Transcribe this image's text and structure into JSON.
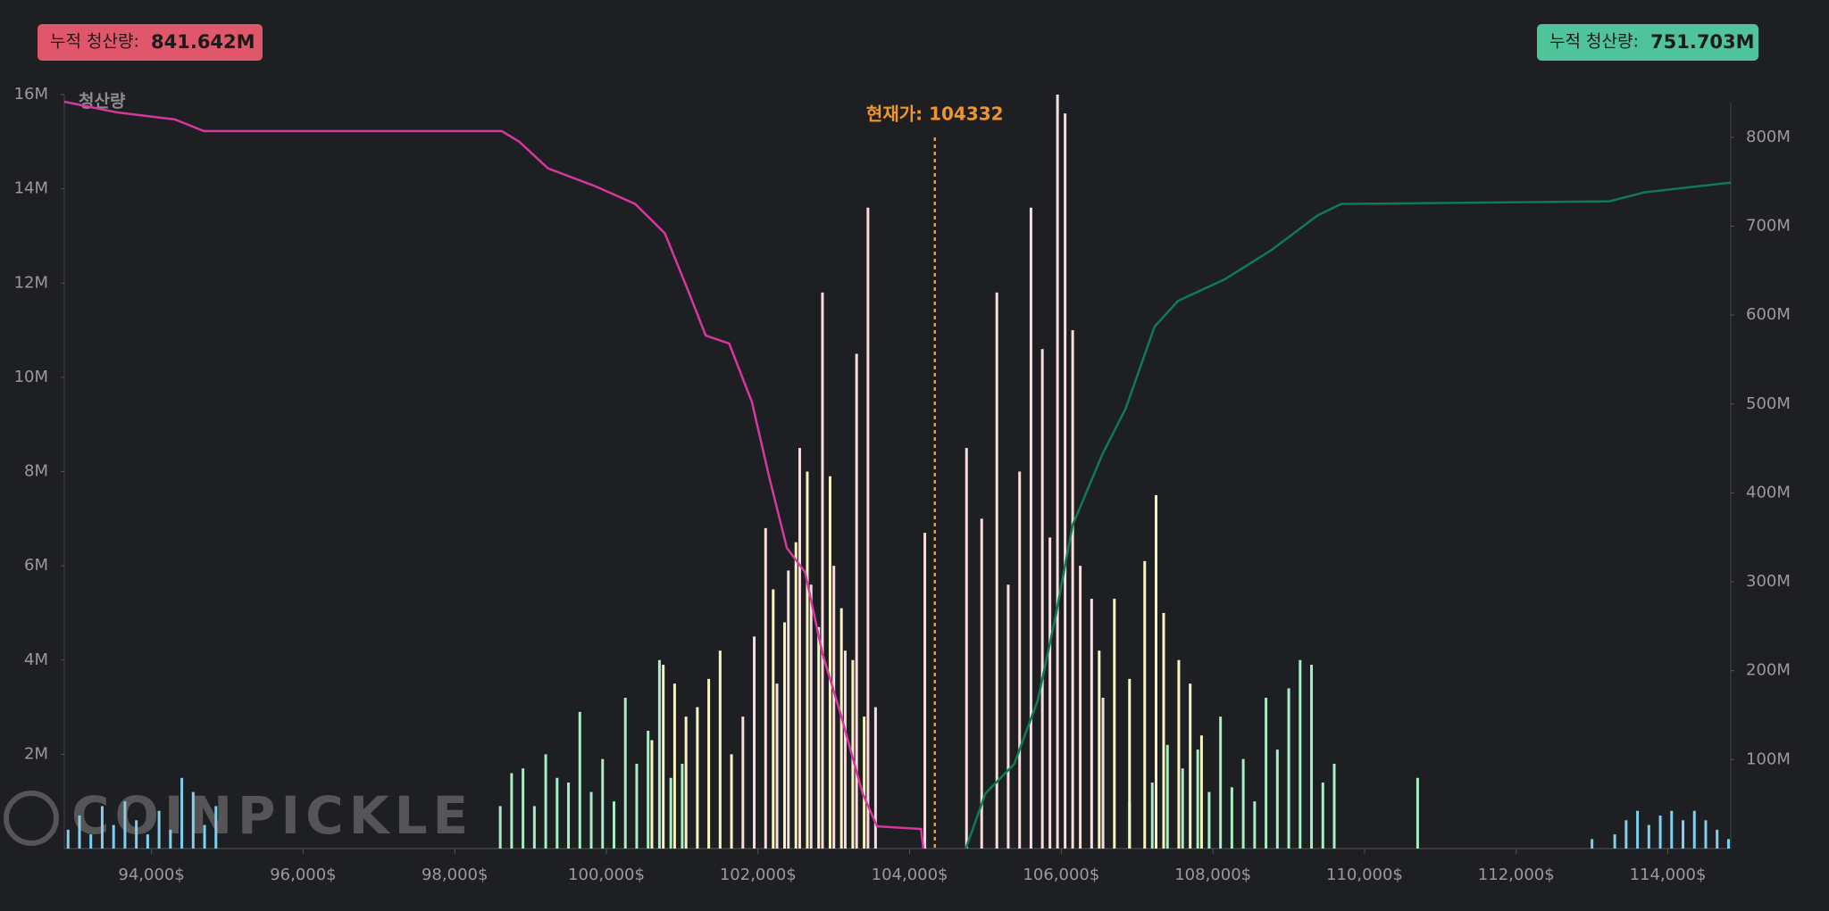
{
  "badges": [
    {
      "label": "누적 청산량:",
      "value": "841.642M",
      "color": "#e0566a"
    },
    {
      "label": "누적 청산량:",
      "value": "751.703M",
      "color": "#4fc39a"
    }
  ],
  "chart_data": {
    "type": "bar-line",
    "y_title": "청산량",
    "watermark": "COINPICKLE",
    "xlim": [
      92850,
      114830
    ],
    "xticks": [
      {
        "value": 94000,
        "label": "94,000$"
      },
      {
        "value": 96000,
        "label": "96,000$"
      },
      {
        "value": 98000,
        "label": "98,000$"
      },
      {
        "value": 100000,
        "label": "100,000$"
      },
      {
        "value": 102000,
        "label": "102,000$"
      },
      {
        "value": 104000,
        "label": "104,000$"
      },
      {
        "value": 106000,
        "label": "106,000$"
      },
      {
        "value": 108000,
        "label": "108,000$"
      },
      {
        "value": 110000,
        "label": "110,000$"
      },
      {
        "value": 112000,
        "label": "112,000$"
      },
      {
        "value": 114000,
        "label": "114,000$"
      }
    ],
    "ylim": [
      0,
      16
    ],
    "yticks": [
      {
        "value": 2,
        "label": "2M"
      },
      {
        "value": 4,
        "label": "4M"
      },
      {
        "value": 6,
        "label": "6M"
      },
      {
        "value": 8,
        "label": "8M"
      },
      {
        "value": 10,
        "label": "10M"
      },
      {
        "value": 12,
        "label": "12M"
      },
      {
        "value": 14,
        "label": "14M"
      },
      {
        "value": 16,
        "label": "16M"
      }
    ],
    "y2lim": [
      0,
      848
    ],
    "y2ticks": [
      {
        "value": 100,
        "label": "100M"
      },
      {
        "value": 200,
        "label": "200M"
      },
      {
        "value": 300,
        "label": "300M"
      },
      {
        "value": 400,
        "label": "400M"
      },
      {
        "value": 500,
        "label": "500M"
      },
      {
        "value": 600,
        "label": "600M"
      },
      {
        "value": 700,
        "label": "700M"
      },
      {
        "value": 800,
        "label": "800M"
      }
    ],
    "annotation": {
      "text": "현재가: 104332",
      "x": 104332,
      "color": "#f0952a"
    },
    "bar_series": [
      {
        "color": "#7fd0f0",
        "x": [
          92900,
          93050,
          93200,
          93350,
          93500,
          93650,
          93800,
          93950,
          94100,
          94250,
          94400,
          94550,
          94700,
          94850,
          113000,
          113300,
          113450,
          113600,
          113750,
          113900,
          114050,
          114200,
          114350,
          114500,
          114650,
          114800
        ],
        "values": [
          0.4,
          0.7,
          0.3,
          0.9,
          0.5,
          1.0,
          0.6,
          0.3,
          0.8,
          0.4,
          1.5,
          1.2,
          0.5,
          0.9,
          0.2,
          0.3,
          0.6,
          0.8,
          0.5,
          0.7,
          0.8,
          0.6,
          0.8,
          0.6,
          0.4,
          0.2
        ]
      },
      {
        "color": "#a6efc4",
        "x": [
          98600,
          98750,
          98900,
          99050,
          99200,
          99350,
          99500,
          99650,
          99800,
          99950,
          100100,
          100250,
          100400,
          100550,
          100700,
          100850,
          101000,
          106900,
          107200,
          107400,
          107600,
          107800,
          107950,
          108100,
          108250,
          108400,
          108550,
          108700,
          108850,
          109000,
          109150,
          109300,
          109450,
          109600,
          110700
        ],
        "values": [
          0.9,
          1.6,
          1.7,
          0.9,
          2.0,
          1.5,
          1.4,
          2.9,
          1.2,
          1.9,
          1.0,
          3.2,
          1.8,
          2.5,
          4.0,
          1.5,
          1.8,
          1.0,
          1.4,
          2.2,
          1.7,
          2.1,
          1.2,
          2.8,
          1.3,
          1.9,
          1.0,
          3.2,
          2.1,
          3.4,
          4.0,
          3.9,
          1.4,
          1.8,
          1.5
        ]
      },
      {
        "color": "#f8f4bf",
        "x": [
          100600,
          100750,
          100900,
          101050,
          101200,
          101350,
          101500,
          101650,
          102200,
          102350,
          102500,
          102650,
          102800,
          102950,
          103100,
          103250,
          103400,
          106500,
          106700,
          106900,
          107100,
          107250,
          107350,
          107550,
          107700,
          107850
        ],
        "values": [
          2.3,
          3.9,
          3.5,
          2.8,
          3.0,
          3.6,
          4.2,
          2.0,
          5.5,
          4.8,
          6.5,
          8.0,
          4.7,
          7.9,
          5.1,
          4.0,
          2.8,
          4.2,
          5.3,
          3.6,
          6.1,
          7.5,
          5.0,
          4.0,
          3.5,
          2.4
        ]
      },
      {
        "color": "#f9dcdc",
        "x": [
          101800,
          101950,
          102100,
          102250,
          102400,
          102550,
          102700,
          102850,
          103000,
          103150,
          103300,
          103450,
          103550,
          104200,
          104750,
          104950,
          105150,
          105300,
          105450,
          105600,
          105750,
          105850,
          105950,
          106050,
          106150,
          106250,
          106400,
          106550
        ],
        "values": [
          2.8,
          4.5,
          6.8,
          3.5,
          5.9,
          8.5,
          5.6,
          11.8,
          6.0,
          4.2,
          10.5,
          13.6,
          3.0,
          6.7,
          8.5,
          7.0,
          11.8,
          5.6,
          8.0,
          13.6,
          10.6,
          6.6,
          16.0,
          15.6,
          11.0,
          6.0,
          5.3,
          3.2
        ]
      }
    ],
    "line_series": [
      {
        "color": "#d6379f",
        "axis": "y2",
        "x": [
          92850,
          93540,
          94310,
          94690,
          98620,
          98850,
          99230,
          99850,
          100380,
          100770,
          101080,
          101310,
          101620,
          101920,
          102150,
          102380,
          102620,
          102850,
          103080,
          103380,
          103570,
          104150,
          104180
        ],
        "values": [
          840,
          828,
          820,
          807,
          807,
          795,
          765,
          745,
          725,
          692,
          627,
          577,
          568,
          502,
          417,
          338,
          311,
          219,
          154,
          62,
          25,
          22,
          0
        ]
      },
      {
        "color": "#0f7a55",
        "axis": "y2",
        "x": [
          104740,
          105000,
          105380,
          105690,
          105920,
          106150,
          106540,
          106850,
          107230,
          107540,
          108150,
          108770,
          109380,
          109690,
          113230,
          113690,
          114830
        ],
        "values": [
          0,
          62,
          95,
          167,
          259,
          364,
          443,
          495,
          587,
          616,
          640,
          673,
          712,
          725,
          728,
          738,
          749
        ]
      }
    ]
  }
}
